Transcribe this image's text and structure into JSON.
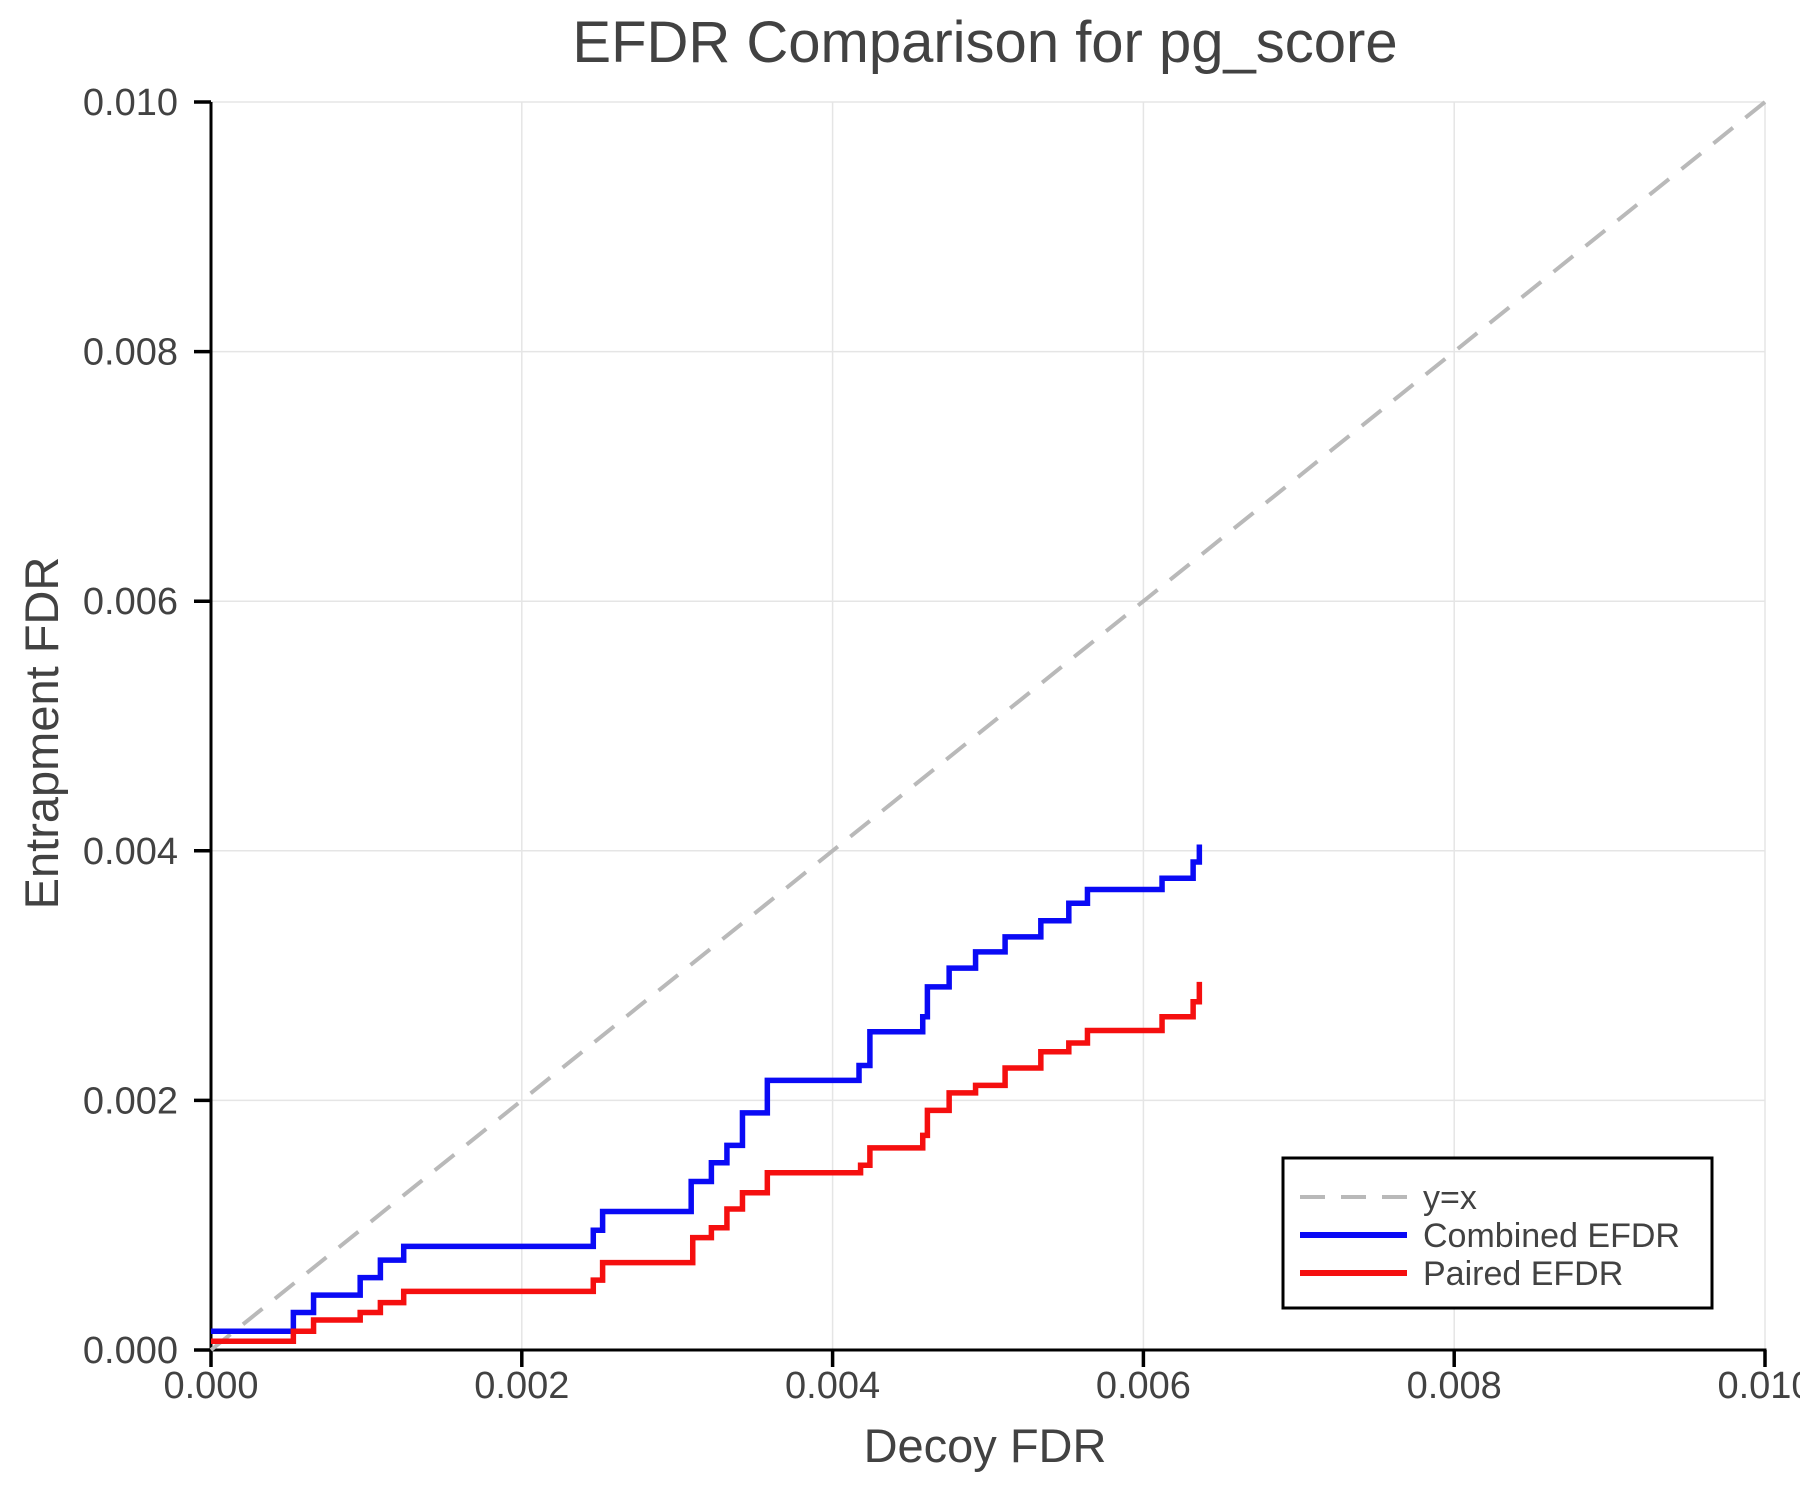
{
  "figure": {
    "title": "EFDR Comparison for pg_score",
    "xlabel": "Decoy FDR",
    "ylabel": "Entrapment FDR"
  },
  "chart_data": {
    "type": "line",
    "title": "EFDR Comparison for pg_score",
    "xlabel": "Decoy FDR",
    "ylabel": "Entrapment FDR",
    "xlim": [
      0.0,
      0.01
    ],
    "ylim": [
      0.0,
      0.01
    ],
    "xticks": [
      0.0,
      0.002,
      0.004,
      0.006,
      0.008,
      0.01
    ],
    "yticks": [
      0.0,
      0.002,
      0.004,
      0.006,
      0.008,
      0.01
    ],
    "xtick_labels": [
      "0.000",
      "0.002",
      "0.004",
      "0.006",
      "0.008",
      "0.010"
    ],
    "ytick_labels": [
      "0.000",
      "0.002",
      "0.004",
      "0.006",
      "0.008",
      "0.010"
    ],
    "grid": true,
    "grid_color": "#e5e5e5",
    "spine_color": "#000000",
    "text_color": "#424242",
    "legend_position": "lower right",
    "series": [
      {
        "name": "y=x",
        "draw": "line",
        "style": "dashed",
        "color": "#b9b9b9",
        "width": 4,
        "points": [
          [
            0.0,
            0.0
          ],
          [
            0.01,
            0.01
          ]
        ]
      },
      {
        "name": "Combined EFDR",
        "draw": "step",
        "style": "solid",
        "color": "#0a0af5",
        "width": 5.5,
        "points": [
          [
            0.0,
            0.00015
          ],
          [
            0.00053,
            0.0003
          ],
          [
            0.00066,
            0.00044
          ],
          [
            0.00096,
            0.00058
          ],
          [
            0.00109,
            0.00072
          ],
          [
            0.00124,
            0.00083
          ],
          [
            0.00246,
            0.00096
          ],
          [
            0.00252,
            0.00111
          ],
          [
            0.00309,
            0.00135
          ],
          [
            0.00322,
            0.0015
          ],
          [
            0.00332,
            0.00164
          ],
          [
            0.00342,
            0.0019
          ],
          [
            0.00358,
            0.00216
          ],
          [
            0.00417,
            0.00228
          ],
          [
            0.00424,
            0.00255
          ],
          [
            0.00458,
            0.00267
          ],
          [
            0.00461,
            0.00291
          ],
          [
            0.00475,
            0.00306
          ],
          [
            0.00492,
            0.00319
          ],
          [
            0.00511,
            0.00331
          ],
          [
            0.00534,
            0.00344
          ],
          [
            0.00552,
            0.00358
          ],
          [
            0.00564,
            0.00369
          ],
          [
            0.00612,
            0.00378
          ],
          [
            0.00632,
            0.00391
          ],
          [
            0.00636,
            0.00405
          ]
        ]
      },
      {
        "name": "Paired EFDR",
        "draw": "step",
        "style": "solid",
        "color": "#f50f0f",
        "width": 5.5,
        "points": [
          [
            0.0,
            7e-05
          ],
          [
            0.00053,
            0.00015
          ],
          [
            0.00066,
            0.00024
          ],
          [
            0.00096,
            0.0003
          ],
          [
            0.00109,
            0.00038
          ],
          [
            0.00124,
            0.00047
          ],
          [
            0.00246,
            0.00056
          ],
          [
            0.00252,
            0.0007
          ],
          [
            0.0031,
            0.0009
          ],
          [
            0.00322,
            0.00098
          ],
          [
            0.00332,
            0.00113
          ],
          [
            0.00342,
            0.00126
          ],
          [
            0.00358,
            0.00142
          ],
          [
            0.00418,
            0.00148
          ],
          [
            0.00424,
            0.00162
          ],
          [
            0.00458,
            0.00172
          ],
          [
            0.00461,
            0.00192
          ],
          [
            0.00475,
            0.00206
          ],
          [
            0.00492,
            0.00212
          ],
          [
            0.00511,
            0.00226
          ],
          [
            0.00534,
            0.00239
          ],
          [
            0.00552,
            0.00246
          ],
          [
            0.00564,
            0.00256
          ],
          [
            0.00612,
            0.00267
          ],
          [
            0.00632,
            0.00279
          ],
          [
            0.00636,
            0.00295
          ]
        ]
      }
    ],
    "legend_items": [
      "y=x",
      "Combined EFDR",
      "Paired EFDR"
    ]
  }
}
